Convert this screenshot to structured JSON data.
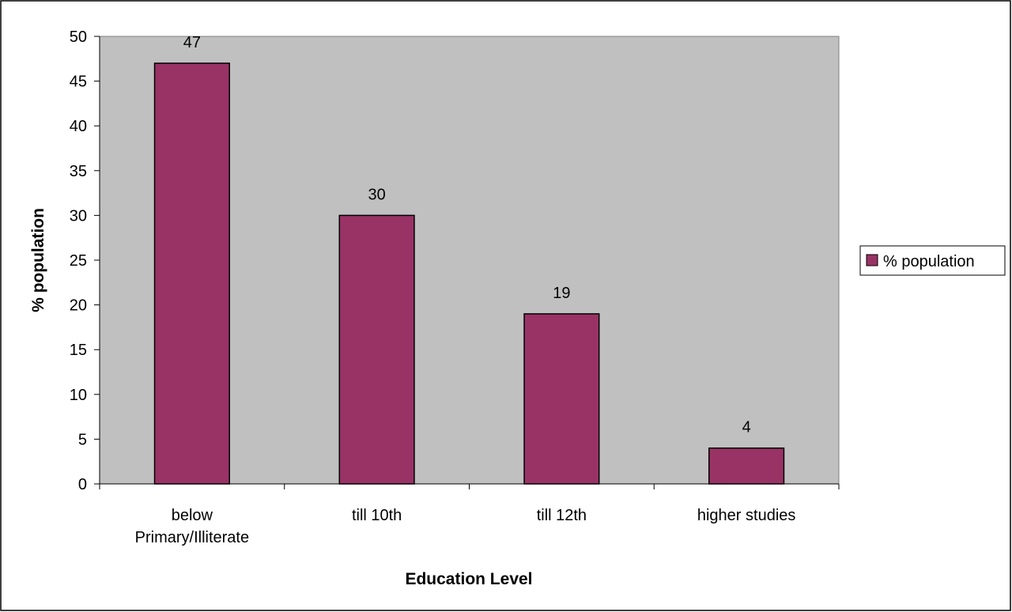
{
  "chart_data": {
    "type": "bar",
    "categories": [
      [
        "below",
        "Primary/Illiterate"
      ],
      [
        "till 10th"
      ],
      [
        "till 12th"
      ],
      [
        "higher studies"
      ]
    ],
    "series": [
      {
        "name": "% population",
        "values": [
          47,
          30,
          19,
          4
        ]
      }
    ],
    "data_labels": [
      "47",
      "30",
      "19",
      "4"
    ],
    "title": "",
    "xlabel": "Education Level",
    "ylabel": "% population",
    "ylim": [
      0,
      50
    ],
    "yticks": [
      0,
      5,
      10,
      15,
      20,
      25,
      30,
      35,
      40,
      45,
      50
    ],
    "ytick_labels": [
      "0",
      "5",
      "10",
      "15",
      "20",
      "25",
      "30",
      "35",
      "40",
      "45",
      "50"
    ],
    "grid": false,
    "legend_position": "right",
    "colors": {
      "plot_background": "#c0c0c0",
      "bar_fill": "#993366",
      "bar_stroke": "#000000",
      "frame": "#000000"
    }
  }
}
